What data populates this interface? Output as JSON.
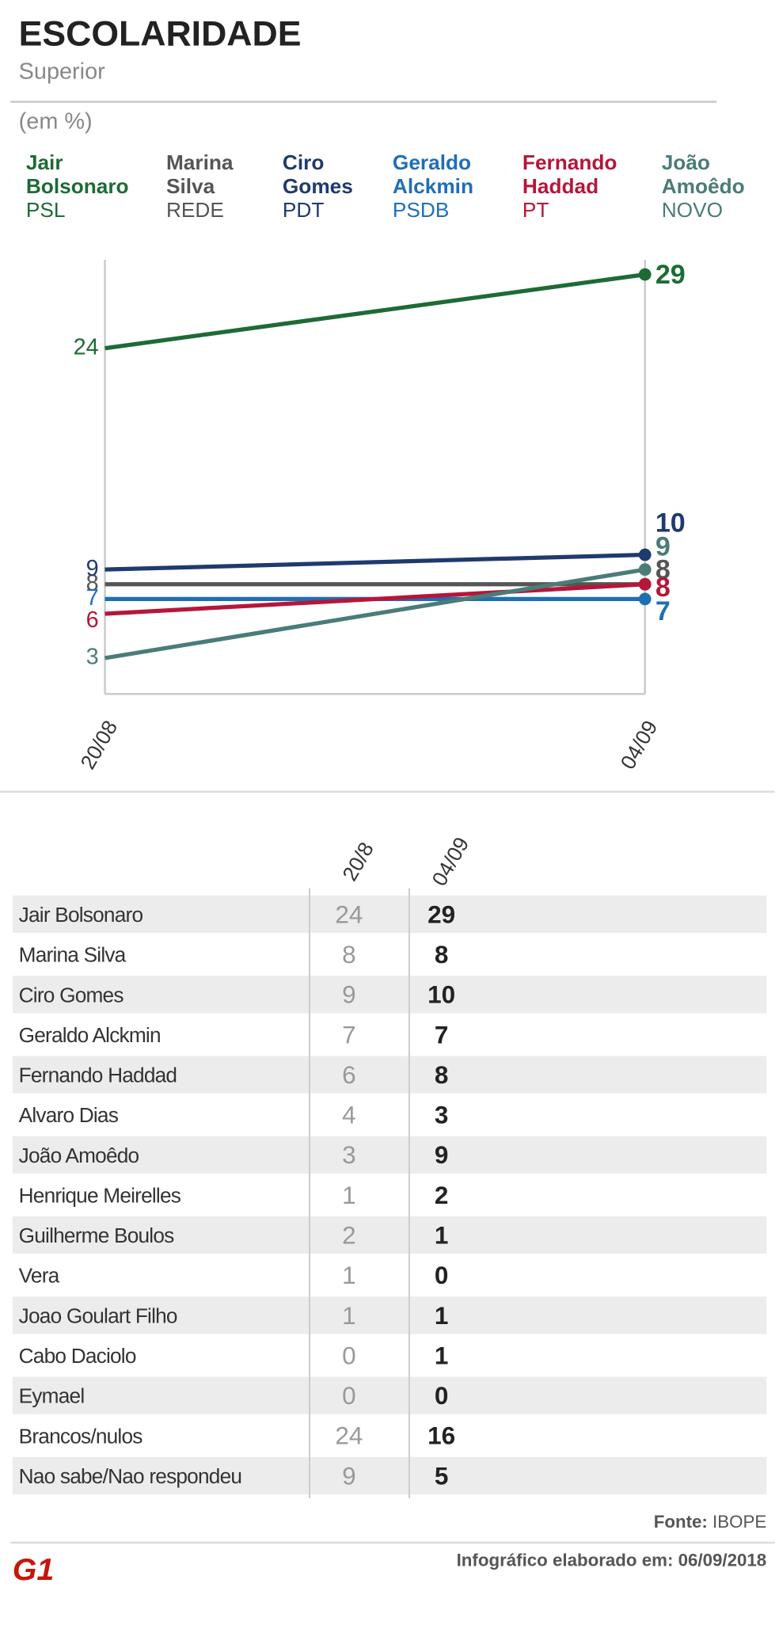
{
  "chart_data": {
    "type": "line",
    "title": "ESCOLARIDADE",
    "subtitle": "Superior",
    "unit_label": "(em %)",
    "x": [
      "20/08",
      "04/09"
    ],
    "series": [
      {
        "name": "Jair Bolsonaro",
        "party": "PSL",
        "color": "#1e6b35",
        "values": [
          24,
          29
        ]
      },
      {
        "name": "Marina Silva",
        "party": "REDE",
        "color": "#555555",
        "values": [
          8,
          8
        ]
      },
      {
        "name": "Ciro Gomes",
        "party": "PDT",
        "color": "#1f3a6e",
        "values": [
          9,
          10
        ]
      },
      {
        "name": "Geraldo Alckmin",
        "party": "PSDB",
        "color": "#1f6fb5",
        "values": [
          7,
          7
        ]
      },
      {
        "name": "Fernando Haddad",
        "party": "PT",
        "color": "#b5163a",
        "values": [
          6,
          8
        ]
      },
      {
        "name": "João Amoêdo",
        "party": "NOVO",
        "color": "#4a7c78",
        "values": [
          3,
          9
        ]
      }
    ],
    "ylim": [
      0,
      30
    ]
  },
  "table": {
    "columns": [
      "20/8",
      "04/09"
    ],
    "rows": [
      [
        "Jair Bolsonaro",
        24,
        29
      ],
      [
        "Marina Silva",
        8,
        8
      ],
      [
        "Ciro Gomes",
        9,
        10
      ],
      [
        "Geraldo Alckmin",
        7,
        7
      ],
      [
        "Fernando Haddad",
        6,
        8
      ],
      [
        "Alvaro Dias",
        4,
        3
      ],
      [
        "João Amoêdo",
        3,
        9
      ],
      [
        "Henrique Meirelles",
        1,
        2
      ],
      [
        "Guilherme Boulos",
        2,
        1
      ],
      [
        "Vera",
        1,
        0
      ],
      [
        "Joao Goulart Filho",
        1,
        1
      ],
      [
        "Cabo Daciolo",
        0,
        1
      ],
      [
        "Eymael",
        0,
        0
      ],
      [
        "Brancos/nulos",
        24,
        16
      ],
      [
        "Nao sabe/Nao respondeu",
        9,
        5
      ]
    ]
  },
  "footer": {
    "source_label": "Fonte:",
    "source": "IBOPE",
    "credit": "Infográfico elaborado em: 06/09/2018",
    "logo": "G1"
  }
}
